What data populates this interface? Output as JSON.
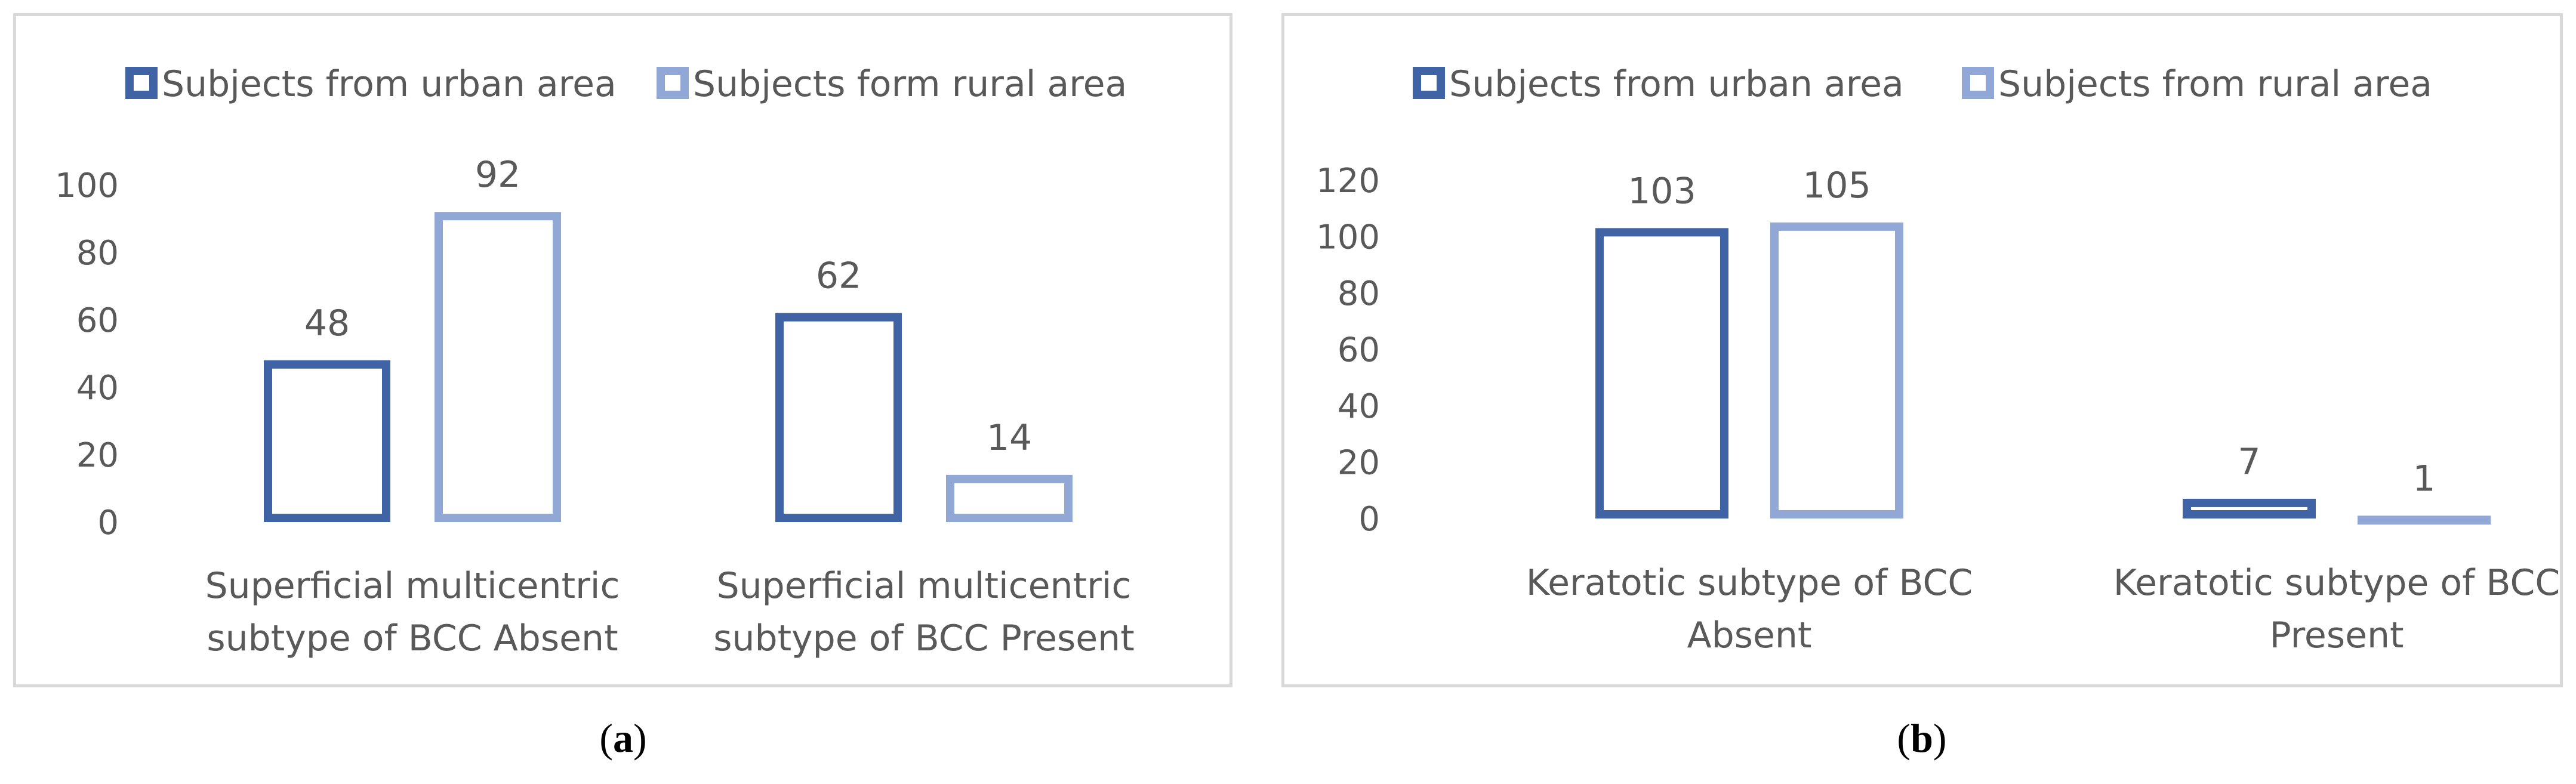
{
  "chart_data": [
    {
      "type": "bar",
      "panel_label": "a",
      "categories": [
        [
          "Superficial multicentric",
          "subtype of BCC Absent"
        ],
        [
          "Superficial multicentric",
          "subtype of BCC Present"
        ]
      ],
      "series": [
        {
          "name": "Subjects from urban area",
          "values": [
            48,
            62
          ],
          "color": "#4063a6"
        },
        {
          "name": "Subjects form rural area",
          "values": [
            92,
            14
          ],
          "color": "#91a8d6"
        }
      ],
      "yticks": [
        0,
        20,
        40,
        60,
        80,
        100
      ],
      "ylim": [
        0,
        100
      ],
      "legend": "top",
      "grid": false
    },
    {
      "type": "bar",
      "panel_label": "b",
      "categories": [
        [
          "Keratotic subtype of BCC",
          "Absent"
        ],
        [
          "Keratotic subtype of BCC",
          "Present"
        ]
      ],
      "series": [
        {
          "name": "Subjects from urban area",
          "values": [
            103,
            7
          ],
          "color": "#4063a6"
        },
        {
          "name": "Subjects from rural area",
          "values": [
            105,
            1
          ],
          "color": "#91a8d6"
        }
      ],
      "yticks": [
        0,
        20,
        40,
        60,
        80,
        100,
        120
      ],
      "ylim": [
        0,
        120
      ],
      "legend": "top",
      "grid": false
    }
  ],
  "captions": {
    "a": {
      "open": "(",
      "letter": "a",
      "close": ")"
    },
    "b": {
      "open": "(",
      "letter": "b",
      "close": ")"
    }
  }
}
